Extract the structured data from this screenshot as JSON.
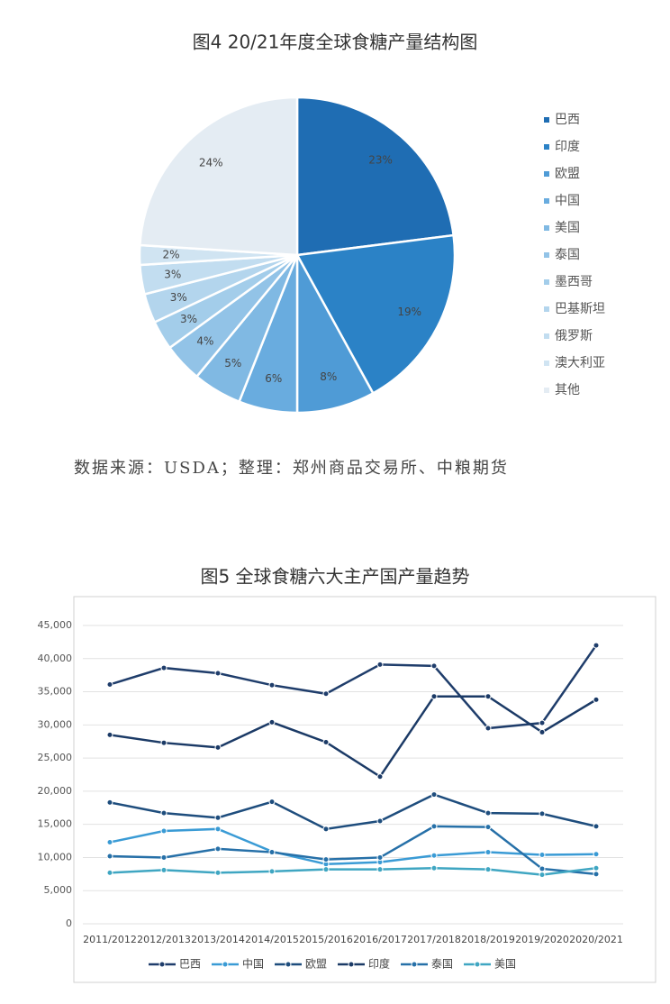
{
  "chart_data": [
    {
      "type": "pie",
      "title": "图4   20/21年度全球食糖产量结构图",
      "categories": [
        "巴西",
        "印度",
        "欧盟",
        "中国",
        "美国",
        "泰国",
        "墨西哥",
        "巴基斯坦",
        "俄罗斯",
        "澳大利亚",
        "其他"
      ],
      "values": [
        23,
        19,
        8,
        6,
        5,
        4,
        3,
        3,
        3,
        2,
        24
      ],
      "value_labels": [
        "23%",
        "19%",
        "8%",
        "6%",
        "5%",
        "4%",
        "3%",
        "3%",
        "3%",
        "2%",
        "24%"
      ],
      "colors": [
        "#1f6db3",
        "#2b82c6",
        "#4f9bd6",
        "#69acdf",
        "#80b9e3",
        "#92c3e7",
        "#a3cdea",
        "#b3d5ed",
        "#c2ddf0",
        "#d0e4f2",
        "#e4ecf3"
      ]
    },
    {
      "type": "line",
      "title": "图5  全球食糖六大主产国产量趋势",
      "categories": [
        "2011/2012",
        "2012/2013",
        "2013/2014",
        "2014/2015",
        "2015/2016",
        "2016/2017",
        "2017/2018",
        "2018/2019",
        "2019/2020",
        "2020/2021"
      ],
      "ylim": [
        0,
        45000
      ],
      "yticks": [
        0,
        {
          "value": 5000,
          "label": "5,000"
        },
        {
          "value": 10000,
          "label": "10,000"
        },
        {
          "value": 15000,
          "label": "15,000"
        },
        {
          "value": 20000,
          "label": "20,000"
        },
        {
          "value": 25000,
          "label": "25,000"
        },
        {
          "value": 30000,
          "label": "30,000"
        },
        {
          "value": 35000,
          "label": "35,000"
        },
        {
          "value": 40000,
          "label": "40,000"
        },
        {
          "value": 45000,
          "label": "45,000"
        }
      ],
      "grid": true,
      "series": [
        {
          "name": "巴西",
          "color": "#1f3d6b",
          "values": [
            36100,
            38600,
            37800,
            36000,
            34700,
            39100,
            38900,
            29500,
            30300,
            42000
          ]
        },
        {
          "name": "中国",
          "color": "#3a9bd5",
          "values": [
            12300,
            14000,
            14300,
            10900,
            9000,
            9300,
            10300,
            10800,
            10400,
            10500
          ]
        },
        {
          "name": "欧盟",
          "color": "#1e4d7d",
          "values": [
            18300,
            16700,
            16000,
            18400,
            14300,
            15500,
            19500,
            16700,
            16600,
            14700
          ]
        },
        {
          "name": "印度",
          "color": "#1b3a66",
          "values": [
            28500,
            27300,
            26600,
            30400,
            27400,
            22200,
            34300,
            34300,
            28900,
            33800
          ]
        },
        {
          "name": "泰国",
          "color": "#2670a8",
          "values": [
            10200,
            10000,
            11300,
            10800,
            9700,
            10000,
            14700,
            14600,
            8300,
            7500
          ]
        },
        {
          "name": "美国",
          "color": "#3fa6c2",
          "values": [
            7700,
            8100,
            7700,
            7900,
            8200,
            8200,
            8400,
            8200,
            7400,
            8400
          ]
        }
      ]
    }
  ],
  "source_note": "数据来源：USDA；整理：郑州商品交易所、中粮期货"
}
